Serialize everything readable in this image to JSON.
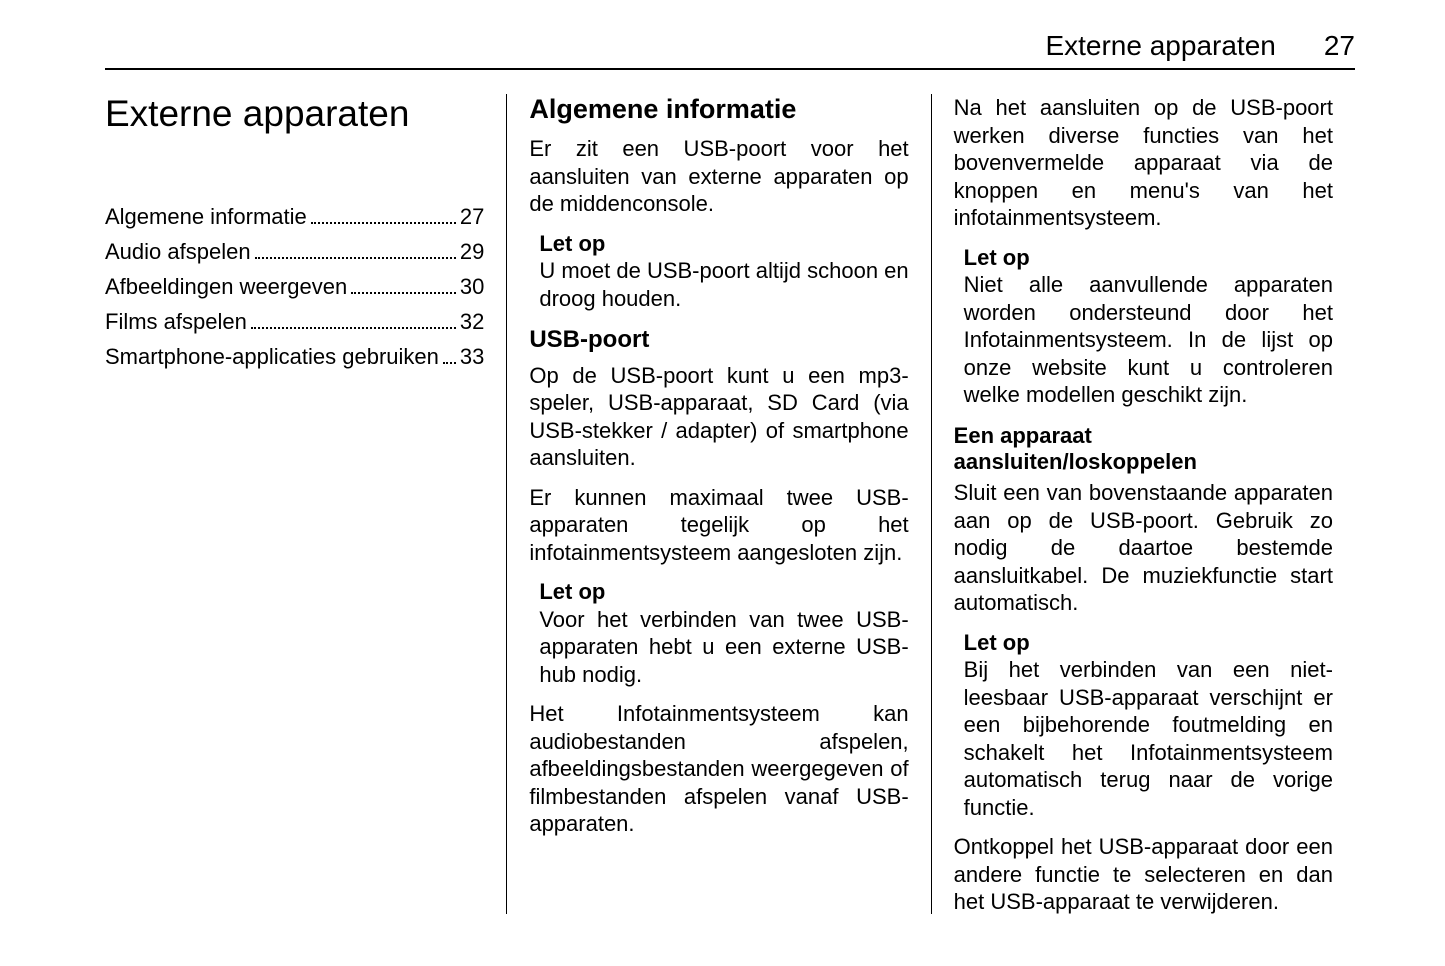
{
  "header": {
    "title": "Externe apparaten",
    "page": "27"
  },
  "col1": {
    "chapter_title": "Externe apparaten",
    "toc": [
      {
        "label": "Algemene informatie",
        "page": "27"
      },
      {
        "label": "Audio afspelen",
        "page": "29"
      },
      {
        "label": "Afbeeldingen weergeven",
        "page": "30"
      },
      {
        "label": "Films afspelen",
        "page": "32"
      },
      {
        "label": "Smartphone-applicaties gebruiken",
        "page": "33"
      }
    ]
  },
  "col2": {
    "h2": "Algemene informatie",
    "p1": "Er zit een USB-poort voor het aansluiten van externe apparaten op de middenconsole.",
    "note1_title": "Let op",
    "note1_body": "U moet de USB-poort altijd schoon en droog houden.",
    "h3": "USB-poort",
    "p2": "Op de USB-poort kunt u een mp3-speler, USB-apparaat, SD Card (via USB-stekker / adapter) of smartphone aansluiten.",
    "p3": "Er kunnen maximaal twee USB-apparaten tegelijk op het infotainmentsysteem aangesloten zijn.",
    "note2_title": "Let op",
    "note2_body": "Voor het verbinden van twee USB-apparaten hebt u een externe USB-hub nodig.",
    "p4": "Het Infotainmentsysteem kan audiobestanden afspelen, afbeeldingsbestanden weergegeven of filmbestanden afspelen vanaf USB-apparaten."
  },
  "col3": {
    "p1": "Na het aansluiten op de USB-poort werken diverse functies van het bovenvermelde apparaat via de knoppen en menu's van het infotainmentsysteem.",
    "note1_title": "Let op",
    "note1_body": "Niet alle aanvullende apparaten worden ondersteund door het Infotainmentsysteem. In de lijst op onze website kunt u controleren welke modellen geschikt zijn.",
    "h4": "Een apparaat aansluiten/loskoppelen",
    "p2": "Sluit een van bovenstaande apparaten aan op de USB-poort. Gebruik zo nodig de daartoe bestemde aansluitkabel. De muziekfunctie start automatisch.",
    "note2_title": "Let op",
    "note2_body": "Bij het verbinden van een niet-leesbaar USB-apparaat verschijnt er een bijbehorende foutmelding en schakelt het Infotainmentsysteem automatisch terug naar de vorige functie.",
    "p3": "Ontkoppel het USB-apparaat door een andere functie te selecteren en dan het USB-apparaat te verwijderen."
  }
}
